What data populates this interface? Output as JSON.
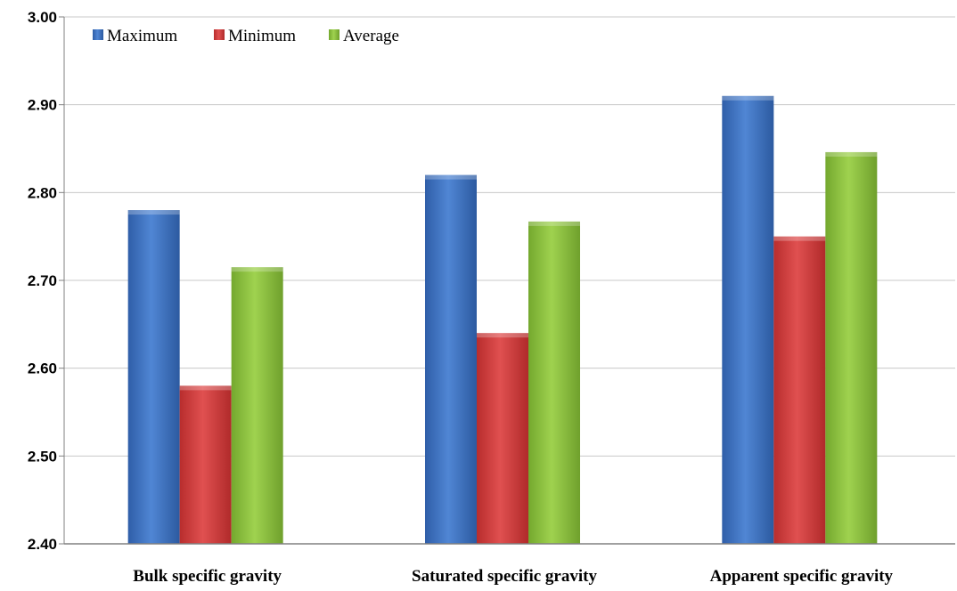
{
  "chart_data": {
    "type": "bar",
    "categories": [
      "Bulk specific gravity",
      "Saturated specific gravity",
      "Apparent specific gravity"
    ],
    "series": [
      {
        "name": "Maximum",
        "values": [
          2.78,
          2.82,
          2.91
        ],
        "color": "#3f72c2"
      },
      {
        "name": "Minimum",
        "values": [
          2.58,
          2.64,
          2.75
        ],
        "color": "#d23c3c"
      },
      {
        "name": "Average",
        "values": [
          2.715,
          2.767,
          2.846
        ],
        "color": "#8cc43e"
      }
    ],
    "ylim": [
      2.4,
      3.0
    ],
    "yticks": [
      "2.40",
      "2.50",
      "2.60",
      "2.70",
      "2.80",
      "2.90",
      "3.00"
    ],
    "grid": true,
    "legend": "top-left"
  }
}
